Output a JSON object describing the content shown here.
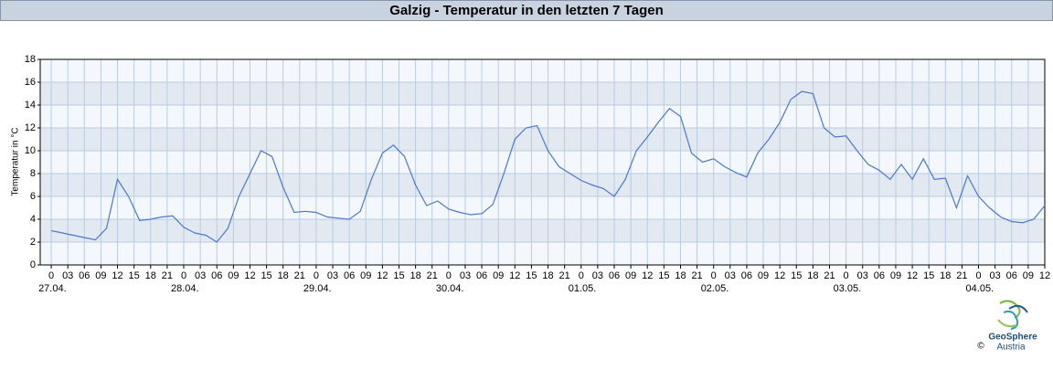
{
  "chart_data": {
    "type": "line",
    "title": "Galzig - Temperatur in den letzten 7 Tagen",
    "ylabel": "Temperatur in °C",
    "credit": "©",
    "logo": [
      "GeoSphere",
      "Austria"
    ],
    "ylim": [
      0,
      18
    ],
    "yticks": [
      0,
      2,
      4,
      6,
      8,
      10,
      12,
      14,
      16,
      18
    ],
    "xlim": [
      "26.04. 22:00",
      "04.05. 12:00"
    ],
    "grid": true,
    "x": [
      "27.04. 00:00",
      "27.04. 02:00",
      "27.04. 04:00",
      "27.04. 06:00",
      "27.04. 08:00",
      "27.04. 10:00",
      "27.04. 12:00",
      "27.04. 14:00",
      "27.04. 16:00",
      "27.04. 18:00",
      "27.04. 20:00",
      "27.04. 22:00",
      "28.04. 00:00",
      "28.04. 02:00",
      "28.04. 04:00",
      "28.04. 06:00",
      "28.04. 08:00",
      "28.04. 10:00",
      "28.04. 12:00",
      "28.04. 14:00",
      "28.04. 16:00",
      "28.04. 18:00",
      "28.04. 20:00",
      "28.04. 22:00",
      "29.04. 00:00",
      "29.04. 02:00",
      "29.04. 04:00",
      "29.04. 06:00",
      "29.04. 08:00",
      "29.04. 10:00",
      "29.04. 12:00",
      "29.04. 14:00",
      "29.04. 16:00",
      "29.04. 18:00",
      "29.04. 20:00",
      "29.04. 22:00",
      "30.04. 00:00",
      "30.04. 02:00",
      "30.04. 04:00",
      "30.04. 06:00",
      "30.04. 08:00",
      "30.04. 10:00",
      "30.04. 12:00",
      "30.04. 14:00",
      "30.04. 16:00",
      "30.04. 18:00",
      "30.04. 20:00",
      "30.04. 22:00",
      "01.05. 00:00",
      "01.05. 02:00",
      "01.05. 04:00",
      "01.05. 06:00",
      "01.05. 08:00",
      "01.05. 10:00",
      "01.05. 12:00",
      "01.05. 14:00",
      "01.05. 16:00",
      "01.05. 18:00",
      "01.05. 20:00",
      "01.05. 22:00",
      "02.05. 00:00",
      "02.05. 02:00",
      "02.05. 04:00",
      "02.05. 06:00",
      "02.05. 08:00",
      "02.05. 10:00",
      "02.05. 12:00",
      "02.05. 14:00",
      "02.05. 16:00",
      "02.05. 18:00",
      "02.05. 20:00",
      "02.05. 22:00",
      "03.05. 00:00",
      "03.05. 02:00",
      "03.05. 04:00",
      "03.05. 06:00",
      "03.05. 08:00",
      "03.05. 10:00",
      "03.05. 12:00",
      "03.05. 14:00",
      "03.05. 16:00",
      "03.05. 18:00",
      "03.05. 20:00",
      "03.05. 22:00",
      "04.05. 00:00",
      "04.05. 02:00",
      "04.05. 04:00",
      "04.05. 06:00",
      "04.05. 08:00",
      "04.05. 10:00",
      "04.05. 12:00"
    ],
    "series": [
      {
        "name": "Temperatur",
        "color": "#4a78d6",
        "values": [
          3.0,
          2.8,
          2.6,
          2.4,
          2.2,
          3.2,
          7.5,
          6.0,
          3.9,
          4.0,
          4.2,
          4.3,
          3.3,
          2.8,
          2.6,
          2.0,
          3.2,
          6.0,
          8.0,
          10.0,
          9.5,
          6.8,
          4.6,
          4.7,
          4.6,
          4.2,
          4.1,
          4.0,
          4.7,
          7.5,
          9.8,
          10.5,
          9.5,
          7.0,
          5.2,
          5.6,
          4.9,
          4.6,
          4.4,
          4.5,
          5.3,
          8.0,
          11.0,
          12.0,
          12.2,
          10.0,
          8.6,
          8.0,
          7.4,
          7.0,
          6.7,
          6.0,
          7.5,
          10.0,
          11.2,
          12.5,
          13.7,
          13.0,
          9.8,
          9.0,
          9.3,
          8.6,
          8.1,
          7.7,
          9.8,
          11.0,
          12.5,
          14.5,
          15.2,
          15.0,
          12.0,
          11.2,
          11.3,
          10.0,
          8.8,
          8.3,
          7.5,
          8.8,
          7.5,
          9.3,
          7.5,
          7.6,
          5.0,
          7.8,
          6.0,
          5.0,
          4.2,
          3.8,
          3.7,
          4.0,
          5.2
        ]
      }
    ],
    "xticks": [
      {
        "value": "27.04. 00:00",
        "label": "0"
      },
      {
        "value": "27.04. 03:00",
        "label": "03"
      },
      {
        "value": "27.04. 06:00",
        "label": "06"
      },
      {
        "value": "27.04. 09:00",
        "label": "09"
      },
      {
        "value": "27.04. 12:00",
        "label": "12"
      },
      {
        "value": "27.04. 15:00",
        "label": "15"
      },
      {
        "value": "27.04. 18:00",
        "label": "18"
      },
      {
        "value": "27.04. 21:00",
        "label": "21"
      },
      {
        "value": "28.04. 00:00",
        "label": "0"
      },
      {
        "value": "28.04. 03:00",
        "label": "03"
      },
      {
        "value": "28.04. 06:00",
        "label": "06"
      },
      {
        "value": "28.04. 09:00",
        "label": "09"
      },
      {
        "value": "28.04. 12:00",
        "label": "12"
      },
      {
        "value": "28.04. 15:00",
        "label": "15"
      },
      {
        "value": "28.04. 18:00",
        "label": "18"
      },
      {
        "value": "28.04. 21:00",
        "label": "21"
      },
      {
        "value": "29.04. 00:00",
        "label": "0"
      },
      {
        "value": "29.04. 03:00",
        "label": "03"
      },
      {
        "value": "29.04. 06:00",
        "label": "06"
      },
      {
        "value": "29.04. 09:00",
        "label": "09"
      },
      {
        "value": "29.04. 12:00",
        "label": "12"
      },
      {
        "value": "29.04. 15:00",
        "label": "15"
      },
      {
        "value": "29.04. 18:00",
        "label": "18"
      },
      {
        "value": "29.04. 21:00",
        "label": "21"
      },
      {
        "value": "30.04. 00:00",
        "label": "0"
      },
      {
        "value": "30.04. 03:00",
        "label": "03"
      },
      {
        "value": "30.04. 06:00",
        "label": "06"
      },
      {
        "value": "30.04. 09:00",
        "label": "09"
      },
      {
        "value": "30.04. 12:00",
        "label": "12"
      },
      {
        "value": "30.04. 15:00",
        "label": "15"
      },
      {
        "value": "30.04. 18:00",
        "label": "18"
      },
      {
        "value": "30.04. 21:00",
        "label": "21"
      },
      {
        "value": "01.05. 00:00",
        "label": "0"
      },
      {
        "value": "01.05. 03:00",
        "label": "03"
      },
      {
        "value": "01.05. 06:00",
        "label": "06"
      },
      {
        "value": "01.05. 09:00",
        "label": "09"
      },
      {
        "value": "01.05. 12:00",
        "label": "12"
      },
      {
        "value": "01.05. 15:00",
        "label": "15"
      },
      {
        "value": "01.05. 18:00",
        "label": "18"
      },
      {
        "value": "01.05. 21:00",
        "label": "21"
      },
      {
        "value": "02.05. 00:00",
        "label": "0"
      },
      {
        "value": "02.05. 03:00",
        "label": "03"
      },
      {
        "value": "02.05. 06:00",
        "label": "06"
      },
      {
        "value": "02.05. 09:00",
        "label": "09"
      },
      {
        "value": "02.05. 12:00",
        "label": "12"
      },
      {
        "value": "02.05. 15:00",
        "label": "15"
      },
      {
        "value": "02.05. 18:00",
        "label": "18"
      },
      {
        "value": "02.05. 21:00",
        "label": "21"
      },
      {
        "value": "03.05. 00:00",
        "label": "0"
      },
      {
        "value": "03.05. 03:00",
        "label": "03"
      },
      {
        "value": "03.05. 06:00",
        "label": "06"
      },
      {
        "value": "03.05. 09:00",
        "label": "09"
      },
      {
        "value": "03.05. 12:00",
        "label": "12"
      },
      {
        "value": "03.05. 15:00",
        "label": "15"
      },
      {
        "value": "03.05. 18:00",
        "label": "18"
      },
      {
        "value": "03.05. 21:00",
        "label": "21"
      },
      {
        "value": "04.05. 00:00",
        "label": "0"
      },
      {
        "value": "04.05. 03:00",
        "label": "03"
      },
      {
        "value": "04.05. 06:00",
        "label": "06"
      },
      {
        "value": "04.05. 09:00",
        "label": "09"
      },
      {
        "value": "04.05. 12:00",
        "label": "12"
      }
    ],
    "date_labels": [
      {
        "value": "27.04. 00:00",
        "label": "27.04."
      },
      {
        "value": "28.04. 00:00",
        "label": "28.04."
      },
      {
        "value": "29.04. 00:00",
        "label": "29.04."
      },
      {
        "value": "30.04. 00:00",
        "label": "30.04."
      },
      {
        "value": "01.05. 00:00",
        "label": "01.05."
      },
      {
        "value": "02.05. 00:00",
        "label": "02.05."
      },
      {
        "value": "03.05. 00:00",
        "label": "03.05."
      },
      {
        "value": "04.05. 00:00",
        "label": "04.05."
      }
    ]
  }
}
